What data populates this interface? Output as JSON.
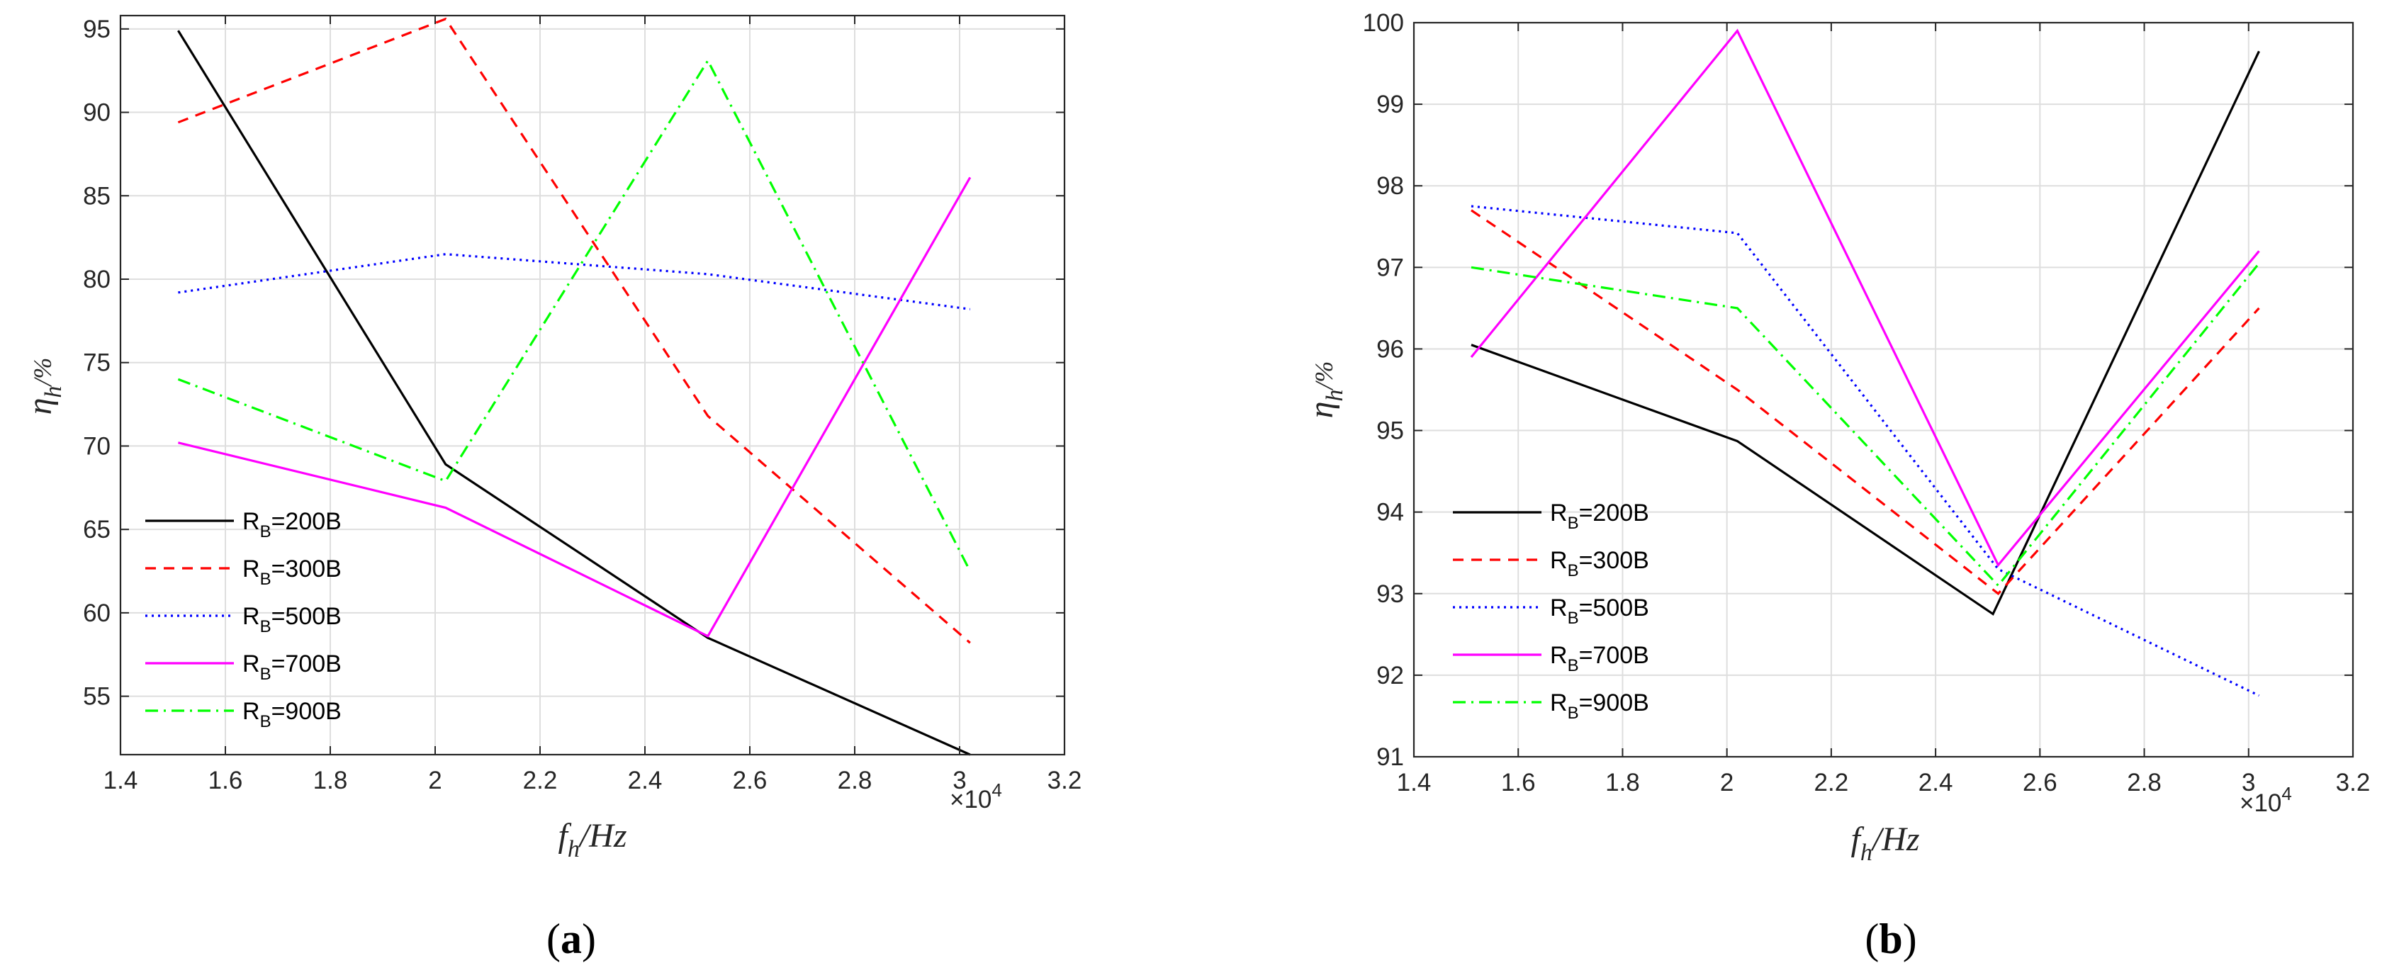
{
  "chart_data": [
    {
      "type": "line",
      "panel_label": "(a)",
      "panel_letter": "a",
      "xlabel_main": "f",
      "xlabel_sub": "h",
      "xlabel_unit": "/Hz",
      "ylabel_main": "η",
      "ylabel_sub": "h",
      "ylabel_unit": "/%",
      "x_exponent_base": "×10",
      "x_exponent_power": "4",
      "xlim": [
        1.4,
        3.2
      ],
      "ylim": [
        51.5,
        95.8
      ],
      "xticks": [
        1.4,
        1.6,
        1.8,
        2,
        2.2,
        2.4,
        2.6,
        2.8,
        3,
        3.2
      ],
      "xtick_labels": [
        "1.4",
        "1.6",
        "1.8",
        "2",
        "2.2",
        "2.4",
        "2.6",
        "2.8",
        "3",
        "3.2"
      ],
      "yticks": [
        55,
        60,
        65,
        70,
        75,
        80,
        85,
        90,
        95
      ],
      "ytick_labels": [
        "55",
        "60",
        "65",
        "70",
        "75",
        "80",
        "85",
        "90",
        "95"
      ],
      "grid": true,
      "legend_position": "bottom-left",
      "series": [
        {
          "name": "RB=200B",
          "label_main": "R",
          "label_sub": "B",
          "label_rest": "=200B",
          "color": "#000000",
          "dash": "solid",
          "x": [
            1.51,
            2.02,
            2.52,
            3.02
          ],
          "values": [
            94.9,
            68.9,
            58.5,
            51.5
          ]
        },
        {
          "name": "RB=300B",
          "label_main": "R",
          "label_sub": "B",
          "label_rest": "=300B",
          "color": "#ff0000",
          "dash": "dashed",
          "x": [
            1.51,
            2.02,
            2.52,
            3.02
          ],
          "values": [
            89.4,
            95.6,
            71.8,
            58.2
          ]
        },
        {
          "name": "RB=500B",
          "label_main": "R",
          "label_sub": "B",
          "label_rest": "=500B",
          "color": "#0000ff",
          "dash": "dotted",
          "x": [
            1.51,
            2.02,
            2.52,
            3.02
          ],
          "values": [
            79.2,
            81.5,
            80.3,
            78.2
          ]
        },
        {
          "name": "RB=700B",
          "label_main": "R",
          "label_sub": "B",
          "label_rest": "=700B",
          "color": "#ff00ff",
          "dash": "solid",
          "x": [
            1.51,
            2.02,
            2.52,
            3.02
          ],
          "values": [
            70.2,
            66.3,
            58.6,
            86.1
          ]
        },
        {
          "name": "RB=900B",
          "label_main": "R",
          "label_sub": "B",
          "label_rest": "=900B",
          "color": "#00ff00",
          "dash": "dashdot",
          "x": [
            1.51,
            2.02,
            2.52,
            3.02
          ],
          "values": [
            74.0,
            67.9,
            93.1,
            62.5
          ]
        }
      ]
    },
    {
      "type": "line",
      "panel_label": "(b)",
      "panel_letter": "b",
      "xlabel_main": "f",
      "xlabel_sub": "h",
      "xlabel_unit": "/Hz",
      "ylabel_main": "η",
      "ylabel_sub": "h",
      "ylabel_unit": "/%",
      "x_exponent_base": "×10",
      "x_exponent_power": "4",
      "xlim": [
        1.4,
        3.2
      ],
      "ylim": [
        91,
        100
      ],
      "xticks": [
        1.4,
        1.6,
        1.8,
        2,
        2.2,
        2.4,
        2.6,
        2.8,
        3,
        3.2
      ],
      "xtick_labels": [
        "1.4",
        "1.6",
        "1.8",
        "2",
        "2.2",
        "2.4",
        "2.6",
        "2.8",
        "3",
        "3.2"
      ],
      "yticks": [
        91,
        92,
        93,
        94,
        95,
        96,
        97,
        98,
        99,
        100
      ],
      "ytick_labels": [
        "91",
        "92",
        "93",
        "94",
        "95",
        "96",
        "97",
        "98",
        "99",
        "100"
      ],
      "grid": true,
      "legend_position": "bottom-left",
      "series": [
        {
          "name": "RB=200B",
          "label_main": "R",
          "label_sub": "B",
          "label_rest": "=200B",
          "color": "#000000",
          "dash": "solid",
          "x": [
            1.51,
            2.02,
            2.51,
            3.02
          ],
          "values": [
            96.05,
            94.87,
            92.75,
            99.65
          ]
        },
        {
          "name": "RB=300B",
          "label_main": "R",
          "label_sub": "B",
          "label_rest": "=300B",
          "color": "#ff0000",
          "dash": "dashed",
          "x": [
            1.51,
            2.02,
            2.52,
            3.02
          ],
          "values": [
            97.7,
            95.5,
            93.0,
            96.5
          ]
        },
        {
          "name": "RB=500B",
          "label_main": "R",
          "label_sub": "B",
          "label_rest": "=500B",
          "color": "#0000ff",
          "dash": "dotted",
          "x": [
            1.51,
            2.02,
            2.52,
            3.02
          ],
          "values": [
            97.75,
            97.42,
            93.3,
            91.75
          ]
        },
        {
          "name": "RB=700B",
          "label_main": "R",
          "label_sub": "B",
          "label_rest": "=700B",
          "color": "#ff00ff",
          "dash": "solid",
          "x": [
            1.51,
            2.02,
            2.52,
            3.02
          ],
          "values": [
            95.9,
            99.9,
            93.35,
            97.2
          ]
        },
        {
          "name": "RB=900B",
          "label_main": "R",
          "label_sub": "B",
          "label_rest": "=900B",
          "color": "#00ff00",
          "dash": "dashdot",
          "x": [
            1.51,
            2.02,
            2.52,
            3.02
          ],
          "values": [
            97.0,
            96.5,
            93.1,
            97.05
          ]
        }
      ]
    }
  ]
}
